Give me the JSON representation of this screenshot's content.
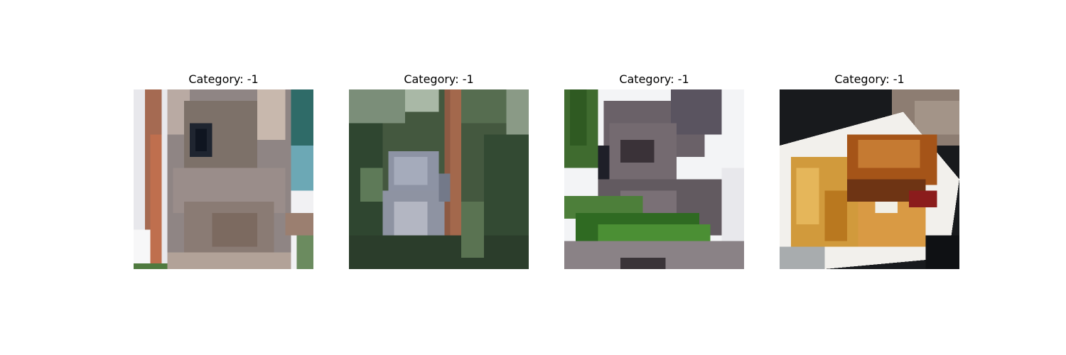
{
  "panels": [
    {
      "title": "Category: -1",
      "subject": "koala-close-up"
    },
    {
      "title": "Category: -1",
      "subject": "koala-in-tree"
    },
    {
      "title": "Category: -1",
      "subject": "koala-with-leaf"
    },
    {
      "title": "Category: -1",
      "subject": "burger-and-fries"
    }
  ]
}
